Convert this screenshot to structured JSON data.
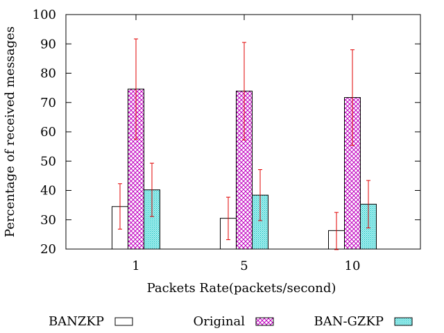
{
  "chart_data": {
    "type": "bar",
    "title": "",
    "xlabel": "Packets Rate(packets/second)",
    "ylabel": "Percentage of received messages",
    "ylim": [
      20,
      100
    ],
    "yticks": [
      20,
      30,
      40,
      50,
      60,
      70,
      80,
      90,
      100
    ],
    "categories": [
      "1",
      "5",
      "10"
    ],
    "error_bar_color": "#e00000",
    "legend_position": "bottom",
    "series": [
      {
        "name": "BANZKP",
        "pattern": "empty",
        "color": "#000000",
        "values": [
          34.5,
          30.5,
          26.3
        ],
        "err_low": [
          26.8,
          23.2,
          19.8
        ],
        "err_high": [
          42.3,
          37.7,
          32.5
        ]
      },
      {
        "name": "Original",
        "pattern": "crosshatch",
        "color": "#c000c0",
        "values": [
          74.6,
          73.9,
          71.7
        ],
        "err_low": [
          57.5,
          57.2,
          55.4
        ],
        "err_high": [
          91.7,
          90.5,
          88.0
        ]
      },
      {
        "name": "BAN-GZKP",
        "pattern": "dots",
        "color": "#00c0c0",
        "values": [
          40.2,
          38.4,
          35.3
        ],
        "err_low": [
          31.1,
          29.7,
          27.2
        ],
        "err_high": [
          49.3,
          47.1,
          43.4
        ]
      }
    ]
  }
}
